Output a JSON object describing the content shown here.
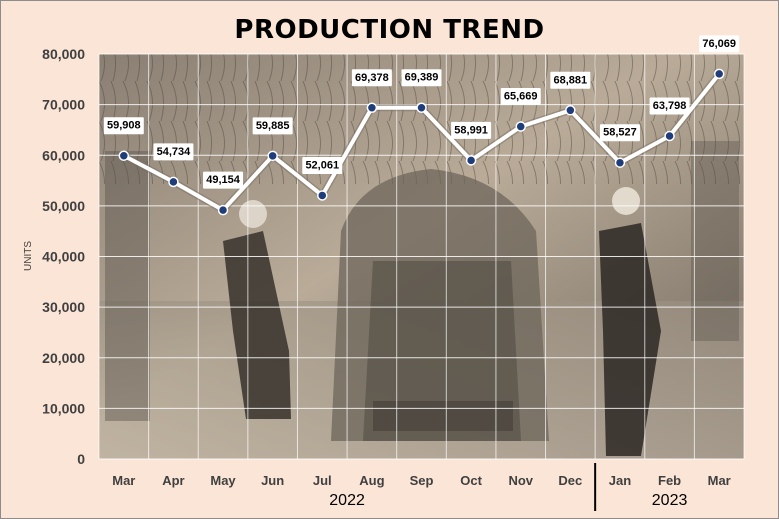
{
  "chart_data": {
    "type": "line",
    "title": "PRODUCTION TREND",
    "ylabel": "UNITS",
    "xlabel": "",
    "categories": [
      "Mar",
      "Apr",
      "May",
      "Jun",
      "Jul",
      "Aug",
      "Sep",
      "Oct",
      "Nov",
      "Dec",
      "Jan",
      "Feb",
      "Mar"
    ],
    "year_groups": [
      {
        "label": "2022",
        "start": 0,
        "end": 9
      },
      {
        "label": "2023",
        "start": 10,
        "end": 12
      }
    ],
    "series": [
      {
        "values": [
          59908,
          54734,
          49154,
          59885,
          52061,
          69378,
          69389,
          58991,
          65669,
          68881,
          58527,
          63798,
          76069
        ]
      }
    ],
    "data_labels": [
      "59,908",
      "54,734",
      "49,154",
      "59,885",
      "52,061",
      "69,378",
      "69,389",
      "58,991",
      "65,669",
      "68,881",
      "58,527",
      "63,798",
      "76,069"
    ],
    "ylim": [
      0,
      80000
    ],
    "yticks": [
      0,
      10000,
      20000,
      30000,
      40000,
      50000,
      60000,
      70000,
      80000
    ],
    "ytick_labels": [
      "0",
      "10,000",
      "20,000",
      "30,000",
      "40,000",
      "50,000",
      "60,000",
      "70,000",
      "80,000"
    ],
    "grid": true,
    "legend": "none",
    "background": "photo of car assembly line (sepia)",
    "colors": {
      "line": "#ffffff",
      "marker": "#1f3d7a",
      "grid": "#ffffff",
      "page": "#fbe5d6"
    }
  }
}
